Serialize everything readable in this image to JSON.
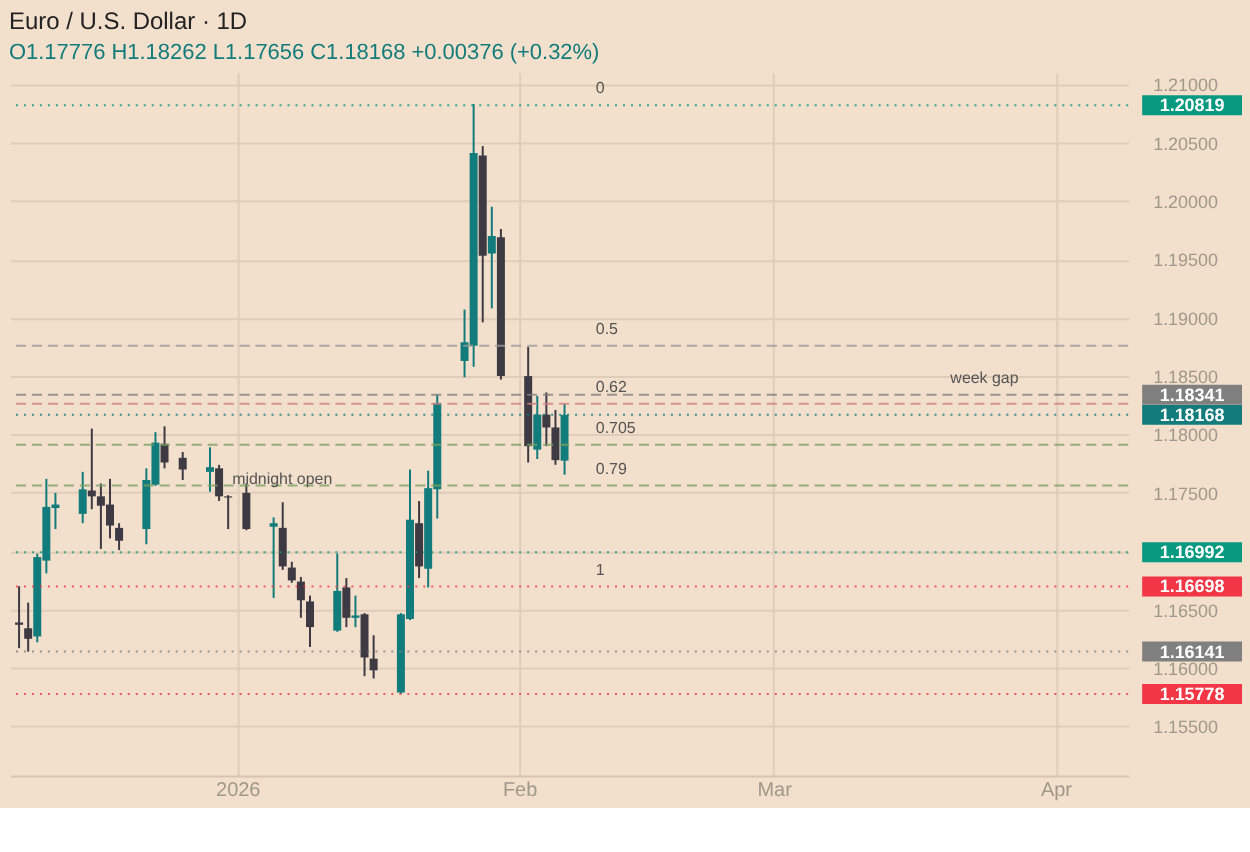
{
  "chart_data": {
    "type": "candlestick",
    "title": "Euro / U.S. Dollar · 1D",
    "subtitle": "O1.17776 H1.18262 L1.17656 C1.18168 +0.00376 (+0.32%)",
    "x": [
      "2025-12-08",
      "2025-12-09",
      "2025-12-10",
      "2025-12-11",
      "2025-12-12",
      "2025-12-15",
      "2025-12-16",
      "2025-12-17",
      "2025-12-18",
      "2025-12-19",
      "2025-12-22",
      "2025-12-23",
      "2025-12-24",
      "2025-12-26",
      "2025-12-29",
      "2025-12-30",
      "2025-12-31",
      "2026-01-02",
      "2026-01-05",
      "2026-01-06",
      "2026-01-07",
      "2026-01-08",
      "2026-01-09",
      "2026-01-12",
      "2026-01-13",
      "2026-01-14",
      "2026-01-15",
      "2026-01-16",
      "2026-01-19",
      "2026-01-20",
      "2026-01-21",
      "2026-01-22",
      "2026-01-23",
      "2026-01-26",
      "2026-01-27",
      "2026-01-28",
      "2026-01-29",
      "2026-01-30",
      "2026-02-02",
      "2026-02-03",
      "2026-02-04",
      "2026-02-05",
      "2026-02-06"
    ],
    "ohlc": [
      [
        1.1639,
        1.167,
        1.1617,
        1.1637
      ],
      [
        1.1634,
        1.1656,
        1.1614,
        1.1625
      ],
      [
        1.1627,
        1.1698,
        1.1622,
        1.1695
      ],
      [
        1.1692,
        1.1762,
        1.1681,
        1.1738
      ],
      [
        1.1737,
        1.175,
        1.1719,
        1.174
      ],
      [
        1.1732,
        1.1768,
        1.1724,
        1.1753
      ],
      [
        1.1752,
        1.1805,
        1.1736,
        1.1747
      ],
      [
        1.1747,
        1.1758,
        1.1702,
        1.1739
      ],
      [
        1.174,
        1.1762,
        1.1711,
        1.1722
      ],
      [
        1.172,
        1.1724,
        1.1701,
        1.1709
      ],
      [
        1.1719,
        1.1771,
        1.1706,
        1.1761
      ],
      [
        1.1757,
        1.1802,
        1.1756,
        1.1793
      ],
      [
        1.1792,
        1.1807,
        1.1771,
        1.1776
      ],
      [
        1.178,
        1.1785,
        1.1761,
        1.177
      ],
      [
        1.1768,
        1.1789,
        1.1751,
        1.1772
      ],
      [
        1.1771,
        1.1774,
        1.1743,
        1.1747
      ],
      [
        1.1747,
        1.1748,
        1.1719,
        1.1746
      ],
      [
        1.175,
        1.1758,
        1.1718,
        1.1719
      ],
      [
        1.1721,
        1.1729,
        1.166,
        1.1724
      ],
      [
        1.172,
        1.1742,
        1.1684,
        1.1687
      ],
      [
        1.1686,
        1.1691,
        1.1673,
        1.1675
      ],
      [
        1.1674,
        1.1678,
        1.1643,
        1.1658
      ],
      [
        1.1657,
        1.1662,
        1.1618,
        1.1635
      ],
      [
        1.1632,
        1.1698,
        1.1631,
        1.1666
      ],
      [
        1.1669,
        1.1677,
        1.1635,
        1.1643
      ],
      [
        1.1643,
        1.1662,
        1.1635,
        1.1645
      ],
      [
        1.1646,
        1.1647,
        1.1593,
        1.1609
      ],
      [
        1.1608,
        1.1628,
        1.1591,
        1.1598
      ],
      [
        1.1579,
        1.1647,
        1.15778,
        1.1646
      ],
      [
        1.1642,
        1.177,
        1.1641,
        1.1727
      ],
      [
        1.1724,
        1.1743,
        1.1677,
        1.1687
      ],
      [
        1.1685,
        1.1769,
        1.1669,
        1.1754
      ],
      [
        1.1753,
        1.1834,
        1.1728,
        1.1827
      ],
      [
        1.1863,
        1.1907,
        1.1849,
        1.1879
      ],
      [
        1.1876,
        1.2083,
        1.1858,
        1.2041
      ],
      [
        1.2039,
        1.2047,
        1.1896,
        1.1953
      ],
      [
        1.1955,
        1.1995,
        1.1908,
        1.197
      ],
      [
        1.1969,
        1.1976,
        1.1847,
        1.185
      ],
      [
        1.185,
        1.1875,
        1.1776,
        1.179
      ],
      [
        1.1787,
        1.1833,
        1.1779,
        1.1817
      ],
      [
        1.1817,
        1.1836,
        1.179,
        1.1806
      ],
      [
        1.1806,
        1.1821,
        1.1774,
        1.1778
      ],
      [
        1.17776,
        1.18262,
        1.17656,
        1.18168
      ]
    ],
    "colors": [
      "#3d3a44",
      "#3d3a44",
      "#127b7b",
      "#127b7b",
      "#127b7b",
      "#127b7b",
      "#3d3a44",
      "#3d3a44",
      "#3d3a44",
      "#3d3a44",
      "#127b7b",
      "#127b7b",
      "#3d3a44",
      "#3d3a44",
      "#127b7b",
      "#3d3a44",
      "#3d3a44",
      "#3d3a44",
      "#127b7b",
      "#3d3a44",
      "#3d3a44",
      "#3d3a44",
      "#3d3a44",
      "#127b7b",
      "#3d3a44",
      "#127b7b",
      "#3d3a44",
      "#3d3a44",
      "#127b7b",
      "#127b7b",
      "#3d3a44",
      "#127b7b",
      "#127b7b",
      "#127b7b",
      "#127b7b",
      "#3d3a44",
      "#127b7b",
      "#3d3a44",
      "#3d3a44",
      "#127b7b",
      "#3d3a44",
      "#3d3a44",
      "#127b7b"
    ],
    "xlim": [
      "2025-12-07",
      "2026-04-09"
    ],
    "xticks": [
      "2026",
      {
        "value": "2026-02",
        "label": "Feb"
      },
      {
        "value": "2026-03",
        "label": "Mar"
      },
      {
        "value": "2026-04",
        "label": "Apr"
      }
    ],
    "ylim": [
      1.1508,
      1.211
    ],
    "yticks": [
      {
        "value": 1.155,
        "label": "1.15500"
      },
      {
        "value": 1.16,
        "label": "1.16000"
      },
      {
        "value": 1.165,
        "label": "1.16500"
      },
      {
        "value": 1.17,
        "label": null
      },
      {
        "value": 1.175,
        "label": "1.17500"
      },
      {
        "value": 1.18,
        "label": "1.18000"
      },
      {
        "value": 1.185,
        "label": "1.18500"
      },
      {
        "value": 1.19,
        "label": "1.19000"
      },
      {
        "value": 1.195,
        "label": "1.19500"
      },
      {
        "value": 1.2,
        "label": "1.20000"
      },
      {
        "value": 1.205,
        "label": "1.20500"
      },
      {
        "value": 1.21,
        "label": "1.21000"
      }
    ],
    "grid": true,
    "ref_lines": [
      {
        "axis": "y",
        "value": 1.20819,
        "label": "1.20819",
        "color": "#089981",
        "line_style": "dotted"
      },
      {
        "axis": "y",
        "value": 1.18341,
        "label": "1.18341",
        "color": "#808080",
        "line_style": "dashed"
      },
      {
        "axis": "y",
        "value": 1.18168,
        "label": "1.18168",
        "color": "#127b7b",
        "line_style": "dotted"
      },
      {
        "axis": "y",
        "value": 1.16992,
        "label": "1.16992",
        "color": "#089981",
        "line_style": "dotted"
      },
      {
        "axis": "y",
        "value": 1.16698,
        "label": "1.16698",
        "color": "#f23645",
        "line_style": "dotted"
      },
      {
        "axis": "y",
        "value": 1.16141,
        "label": "1.16141",
        "color": "#808080",
        "line_style": "dotted"
      },
      {
        "axis": "y",
        "value": 1.15778,
        "label": "1.15778",
        "color": "#f23645",
        "line_style": "dotted"
      },
      {
        "axis": "y",
        "value": 1.18759,
        "label": null,
        "color": "#9a9a9a",
        "line_style": "dashed"
      },
      {
        "axis": "y",
        "value": 1.18263,
        "label": null,
        "color": "#d08080",
        "line_style": "dashed"
      },
      {
        "axis": "y",
        "value": 1.17913,
        "label": null,
        "color": "#7aa060",
        "line_style": "dashed"
      },
      {
        "axis": "y",
        "value": 1.17562,
        "label": null,
        "color": "#7aa060",
        "line_style": "dashed"
      }
    ],
    "annotations": [
      {
        "text": "midnight open",
        "x": "2025-12-31",
        "y": 1.1747
      },
      {
        "text": "week gap",
        "x": "2026-03-20",
        "y": 1.18341
      },
      {
        "text": "0",
        "x": "2026-02-09",
        "y": 1.20819
      },
      {
        "text": "0.5",
        "x": "2026-02-09",
        "y": 1.18759
      },
      {
        "text": "0.62",
        "x": "2026-02-09",
        "y": 1.18263
      },
      {
        "text": "0.705",
        "x": "2026-02-09",
        "y": 1.17913
      },
      {
        "text": "0.79",
        "x": "2026-02-09",
        "y": 1.17562
      },
      {
        "text": "1",
        "x": "2026-02-09",
        "y": 1.16698
      }
    ]
  }
}
